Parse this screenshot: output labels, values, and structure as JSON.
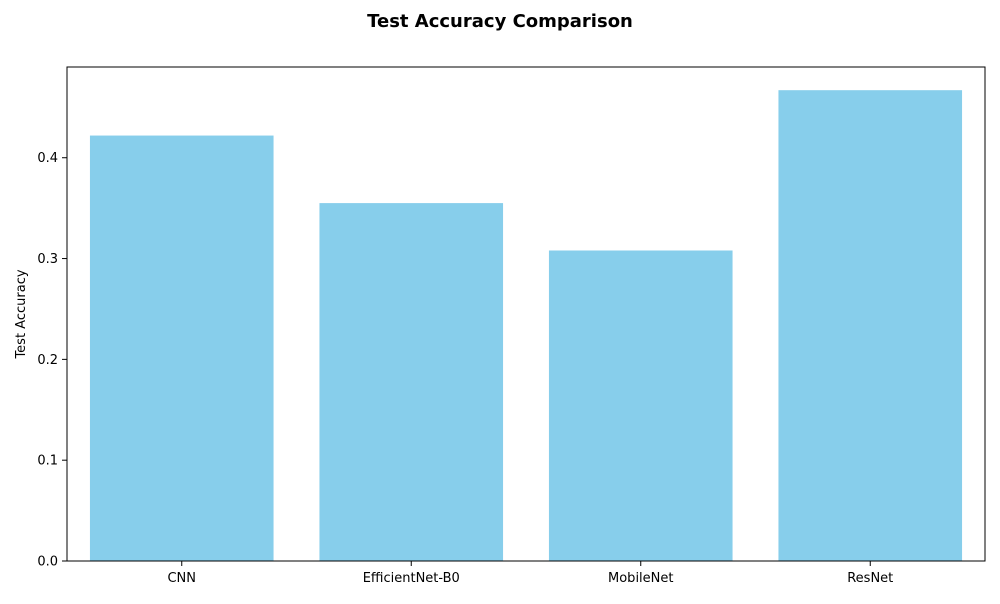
{
  "chart_data": {
    "type": "bar",
    "title": "Test Accuracy Comparison",
    "xlabel": "",
    "ylabel": "Test Accuracy",
    "categories": [
      "CNN",
      "EfficientNet-B0",
      "MobileNet",
      "ResNet"
    ],
    "values": [
      0.422,
      0.355,
      0.308,
      0.467
    ],
    "ylim": [
      0,
      0.49
    ],
    "yticks": [
      0.0,
      0.1,
      0.2,
      0.3,
      0.4
    ],
    "ytick_labels": [
      "0.0",
      "0.1",
      "0.2",
      "0.3",
      "0.4"
    ],
    "grid": false,
    "legend": "none",
    "bar_color": "#87CEEB",
    "axis_color": "#000000"
  }
}
